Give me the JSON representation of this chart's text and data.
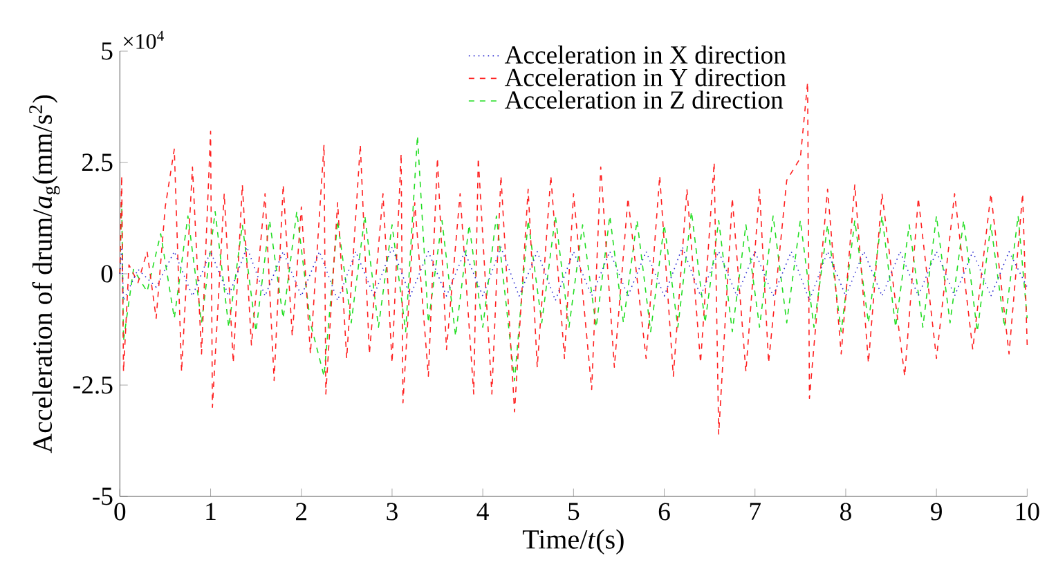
{
  "chart_data": {
    "type": "line",
    "xlabel": "Time/*t*(s)",
    "ylabel": "Acceleration of drum/*a*$_{g}$(mm/s$^{2}$)",
    "annotations": [
      "×10$^{4}$"
    ],
    "xlim": [
      0,
      10
    ],
    "ylim": [
      -5,
      5
    ],
    "xticks": [
      0,
      1,
      2,
      3,
      4,
      5,
      6,
      7,
      8,
      9,
      10
    ],
    "yticks": [
      -5,
      -2.5,
      0,
      2.5,
      5
    ],
    "legend": "top right",
    "grid": false,
    "series": [
      {
        "name": "Acceleration in X direction",
        "color": "#2a2ad0",
        "line_style": "dotted",
        "x": [
          0,
          0.02,
          0.04,
          0.2,
          0.4,
          0.6,
          0.8,
          1.0,
          1.2,
          1.4,
          1.6,
          1.8,
          2.0,
          2.2,
          2.4,
          2.6,
          2.8,
          3.0,
          3.2,
          3.4,
          3.6,
          3.8,
          4.0,
          4.2,
          4.4,
          4.6,
          4.8,
          5.0,
          5.2,
          5.4,
          5.6,
          5.8,
          6.0,
          6.2,
          6.4,
          6.6,
          6.8,
          7.0,
          7.2,
          7.4,
          7.6,
          7.8,
          8.0,
          8.2,
          8.4,
          8.6,
          8.8,
          9.0,
          9.2,
          9.4,
          9.6,
          9.8,
          10.0
        ],
        "values": [
          0,
          0.6,
          -0.6,
          0.1,
          -0.3,
          0.5,
          -0.5,
          0.5,
          -0.5,
          0.6,
          -0.5,
          0.5,
          -0.5,
          0.5,
          -0.6,
          0.5,
          -0.5,
          0.6,
          -0.5,
          0.5,
          -0.5,
          0.5,
          -0.5,
          0.6,
          -0.5,
          0.5,
          -0.6,
          0.5,
          -0.5,
          0.5,
          -0.5,
          0.5,
          -0.5,
          0.6,
          -0.5,
          0.5,
          -0.5,
          0.5,
          -0.5,
          0.5,
          -0.6,
          0.5,
          -0.5,
          0.5,
          -0.5,
          0.5,
          -0.5,
          0.5,
          -0.5,
          0.5,
          -0.5,
          0.5,
          -0.3
        ]
      },
      {
        "name": "Acceleration in Y direction",
        "color": "#ff2020",
        "line_style": "dashed",
        "x": [
          0,
          0.02,
          0.04,
          0.1,
          0.2,
          0.3,
          0.4,
          0.5,
          0.6,
          0.68,
          0.8,
          0.9,
          1.0,
          1.02,
          1.15,
          1.25,
          1.35,
          1.45,
          1.6,
          1.7,
          1.8,
          1.9,
          2.0,
          2.1,
          2.25,
          2.27,
          2.4,
          2.5,
          2.65,
          2.75,
          2.9,
          3.0,
          3.1,
          3.12,
          3.25,
          3.4,
          3.5,
          3.6,
          3.75,
          3.9,
          3.95,
          4.1,
          4.2,
          4.35,
          4.5,
          4.6,
          4.75,
          4.9,
          5.0,
          5.2,
          5.3,
          5.45,
          5.6,
          5.8,
          5.95,
          6.1,
          6.25,
          6.4,
          6.55,
          6.6,
          6.75,
          6.9,
          7.05,
          7.15,
          7.35,
          7.5,
          7.58,
          7.6,
          7.8,
          7.95,
          8.1,
          8.25,
          8.4,
          8.65,
          8.8,
          9.0,
          9.2,
          9.4,
          9.6,
          9.8,
          9.95,
          10.0
        ],
        "values": [
          0,
          2.2,
          -2.2,
          0.2,
          -0.2,
          0.5,
          -1.0,
          1.5,
          2.8,
          -2.2,
          2.4,
          -1.8,
          3.2,
          -3.0,
          1.8,
          -2.0,
          2.0,
          -1.6,
          1.8,
          -2.4,
          2.0,
          -1.4,
          1.5,
          -1.8,
          2.9,
          -2.7,
          1.6,
          -1.9,
          2.9,
          -1.8,
          1.8,
          -2.0,
          2.7,
          -2.9,
          1.6,
          -2.3,
          2.6,
          -1.7,
          1.8,
          -2.7,
          2.6,
          -2.7,
          2.2,
          -3.1,
          1.9,
          -2.1,
          2.2,
          -1.9,
          1.8,
          -2.6,
          2.4,
          -2.1,
          1.7,
          -1.9,
          2.2,
          -2.3,
          1.9,
          -2.0,
          2.5,
          -3.6,
          1.7,
          -2.2,
          1.9,
          -2.0,
          2.1,
          2.6,
          4.3,
          -2.8,
          1.9,
          -1.8,
          2.0,
          -2.0,
          1.8,
          -2.3,
          1.7,
          -1.9,
          1.8,
          -1.7,
          1.8,
          -1.8,
          1.8,
          -1.6
        ]
      },
      {
        "name": "Acceleration in Z direction",
        "color": "#22dd22",
        "line_style": "dashed",
        "x": [
          0,
          0.02,
          0.04,
          0.15,
          0.3,
          0.45,
          0.6,
          0.75,
          0.9,
          1.05,
          1.2,
          1.35,
          1.5,
          1.65,
          1.8,
          1.95,
          2.1,
          2.25,
          2.4,
          2.55,
          2.7,
          2.85,
          3.0,
          3.15,
          3.28,
          3.4,
          3.55,
          3.7,
          3.85,
          4.0,
          4.15,
          4.35,
          4.5,
          4.65,
          4.8,
          4.95,
          5.1,
          5.25,
          5.4,
          5.55,
          5.7,
          5.85,
          6.0,
          6.15,
          6.3,
          6.45,
          6.6,
          6.75,
          6.9,
          7.05,
          7.2,
          7.35,
          7.5,
          7.65,
          7.8,
          7.95,
          8.1,
          8.25,
          8.4,
          8.55,
          8.7,
          8.85,
          9.0,
          9.15,
          9.3,
          9.45,
          9.6,
          9.75,
          9.9,
          10.0
        ],
        "values": [
          0,
          1.6,
          -1.5,
          0.1,
          -0.4,
          0.9,
          -1.0,
          1.3,
          -1.1,
          1.4,
          -1.2,
          1.1,
          -1.3,
          1.2,
          -1.0,
          1.4,
          -1.1,
          -2.3,
          1.2,
          -1.1,
          1.3,
          -1.2,
          1.1,
          -1.3,
          3.1,
          -1.1,
          1.2,
          -1.4,
          1.1,
          -1.2,
          1.3,
          -2.4,
          1.2,
          -1.1,
          1.3,
          -1.2,
          1.1,
          -1.2,
          1.3,
          -1.1,
          1.2,
          -1.3,
          1.1,
          -1.2,
          1.4,
          -1.1,
          1.2,
          -1.3,
          1.1,
          -1.2,
          1.3,
          -1.1,
          1.2,
          -1.2,
          1.1,
          -1.3,
          1.2,
          -1.1,
          1.3,
          -1.2,
          1.1,
          -1.2,
          1.3,
          -1.1,
          1.2,
          -1.3,
          1.1,
          -1.2,
          1.3,
          -1.0
        ]
      }
    ]
  }
}
